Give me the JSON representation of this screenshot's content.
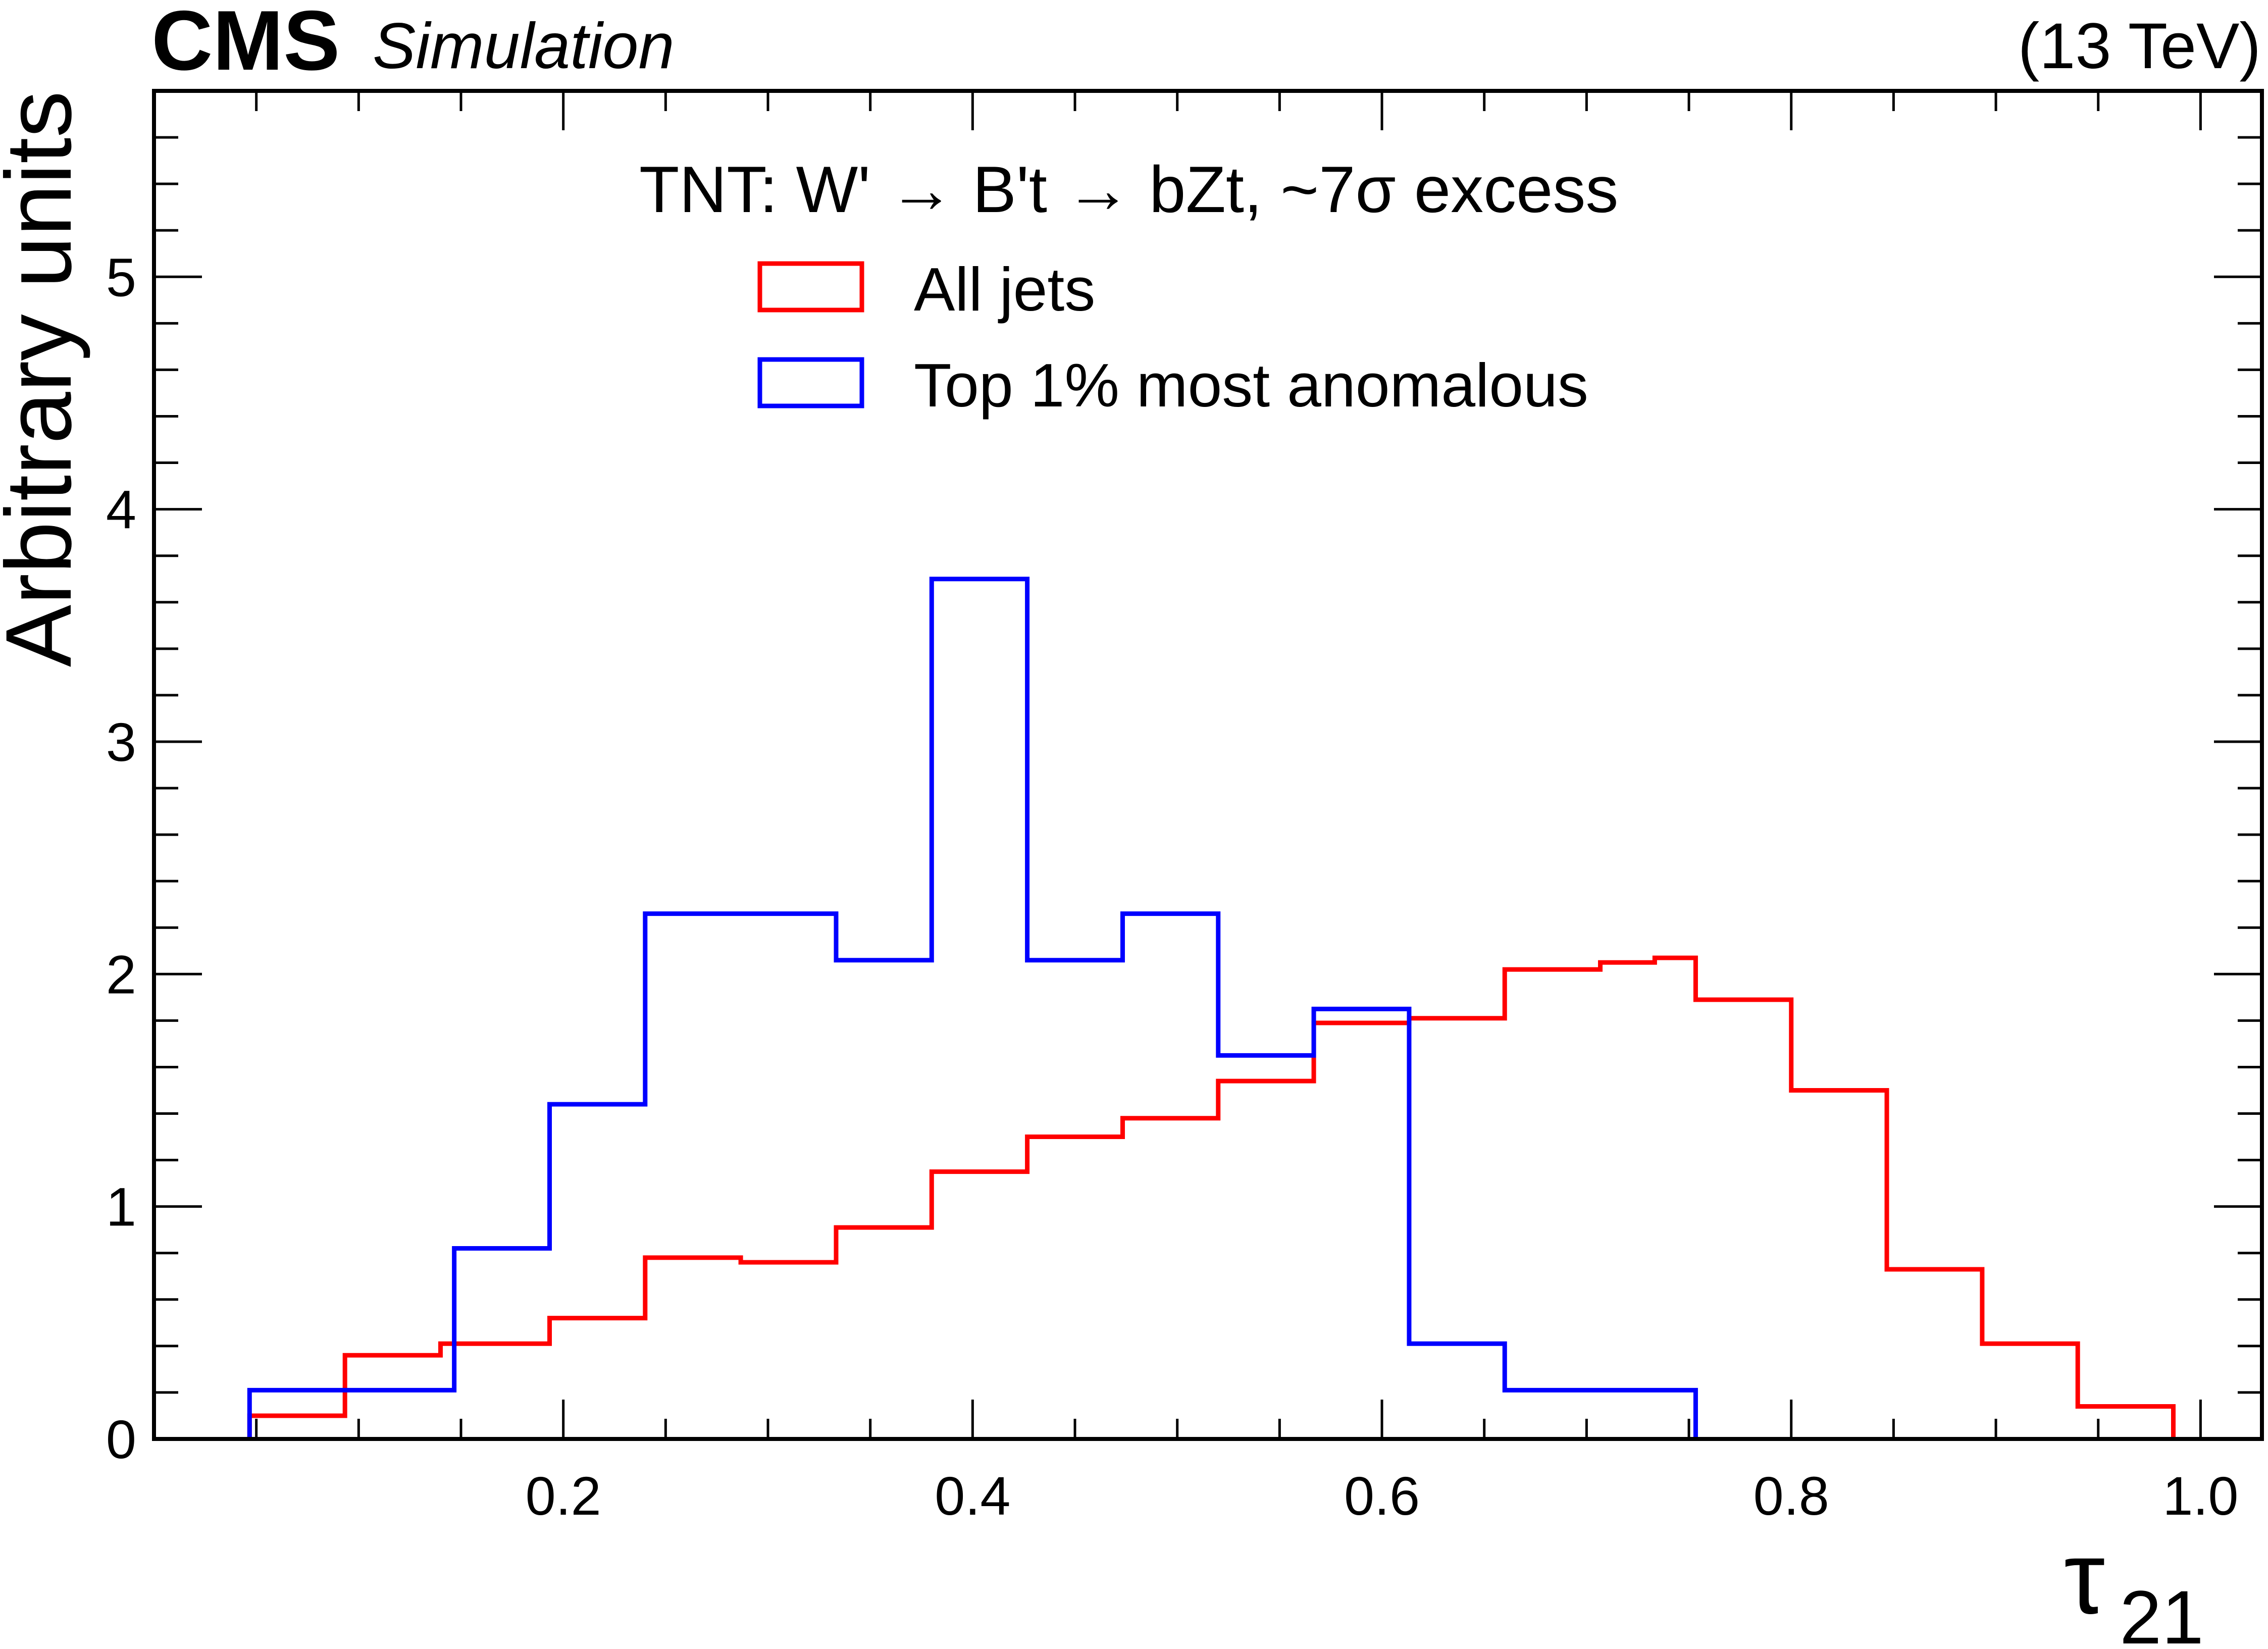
{
  "header": {
    "experiment": "CMS",
    "status": "Simulation",
    "energy": "(13 TeV)"
  },
  "chart_data": {
    "type": "histogram-step",
    "title": "",
    "legend_header": "TNT: W' → B't → bZt, ~7σ excess",
    "xlabel": "τ",
    "xlabel_sub": "21",
    "ylabel": "Arbitrary units",
    "xlim": [
      0.0,
      1.03
    ],
    "ylim": [
      0,
      5.8
    ],
    "xticks": [
      0.2,
      0.4,
      0.6,
      0.8,
      1.0
    ],
    "xtick_labels": [
      "0.2",
      "0.4",
      "0.6",
      "0.8",
      "1.0"
    ],
    "yticks": [
      0,
      1,
      2,
      3,
      4,
      5
    ],
    "ytick_labels": [
      "0",
      "1",
      "2",
      "3",
      "4",
      "5"
    ],
    "legend_position": "top-center",
    "grid": false,
    "series": [
      {
        "name": "All jets",
        "color": "#ff0000",
        "edges": [
          0.0467,
          0.0933,
          0.14,
          0.1933,
          0.24,
          0.2867,
          0.3333,
          0.38,
          0.4267,
          0.4733,
          0.52,
          0.5667,
          0.6133,
          0.66,
          0.7067,
          0.7333,
          0.7533,
          0.8,
          0.8467,
          0.8933,
          0.94,
          0.9867
        ],
        "values": [
          0.1,
          0.36,
          0.41,
          0.52,
          0.78,
          0.76,
          0.91,
          1.15,
          1.3,
          1.38,
          1.54,
          1.79,
          1.81,
          2.02,
          2.05,
          2.07,
          1.89,
          1.5,
          0.73,
          0.41,
          0.14
        ]
      },
      {
        "name": "Top 1% most anomalous",
        "color": "#0000ff",
        "edges": [
          0.0467,
          0.1,
          0.1467,
          0.1933,
          0.24,
          0.3333,
          0.38,
          0.4267,
          0.4733,
          0.52,
          0.5667,
          0.6133,
          0.66,
          0.7067,
          0.7533
        ],
        "values": [
          0.21,
          0.21,
          0.82,
          1.44,
          2.26,
          2.06,
          3.7,
          2.06,
          2.26,
          1.65,
          1.85,
          0.41,
          0.21,
          0.21
        ]
      }
    ]
  }
}
